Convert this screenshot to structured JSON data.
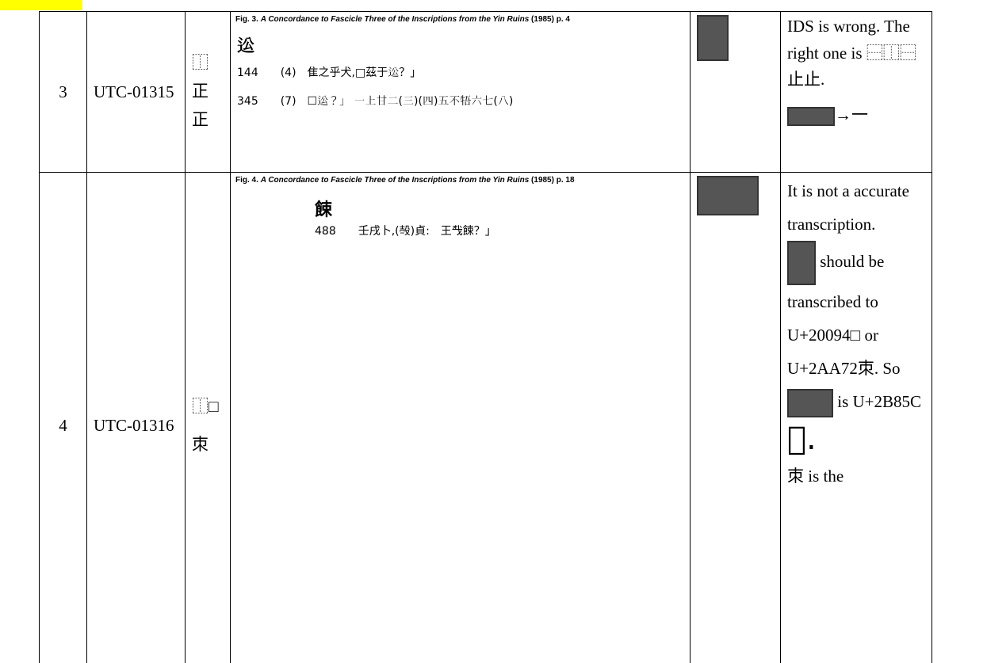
{
  "table": {
    "rows": [
      {
        "number": "3",
        "id": "UTC-01315",
        "ids": [
          "⿰正",
          "正"
        ],
        "figure": {
          "caption_prefix": "Fig. 3.",
          "caption_title": "A Concordance to Fascicle Three of the Inscriptions from the Yin Ruins",
          "caption_suffix": "(1985) p. 4",
          "lines": [
            "𨑪",
            "144　　(4)　隹之乎犬,□茲于𨑪？」",
            "345　　(7)　☐𨑪？」 一上甘二(三)(四)五不牾六七(八)"
          ]
        },
        "comment": [
          "IDS is wrong. The right one is ⿱⿰⿱ 止止.",
          "→一"
        ]
      },
      {
        "number": "4",
        "id": "UTC-01316",
        "ids": [
          "⿰□",
          "朿"
        ],
        "figure": {
          "caption_prefix": "Fig. 4.",
          "caption_title": "A Concordance to Fascicle Three of the Inscriptions from the Yin Ruins",
          "caption_suffix": "(1985) p. 18",
          "lines": [
            "餗",
            "488　　壬戌卜,(𣪊)貞:　王𢦔餗？」"
          ]
        },
        "comment": [
          "It is not a accurate transcription.",
          "should be",
          "transcribed to",
          "U+20094□ or",
          "U+2AA72朿. So",
          "is U+2B85C",
          "𫡜.",
          "朿 is the"
        ]
      }
    ]
  }
}
